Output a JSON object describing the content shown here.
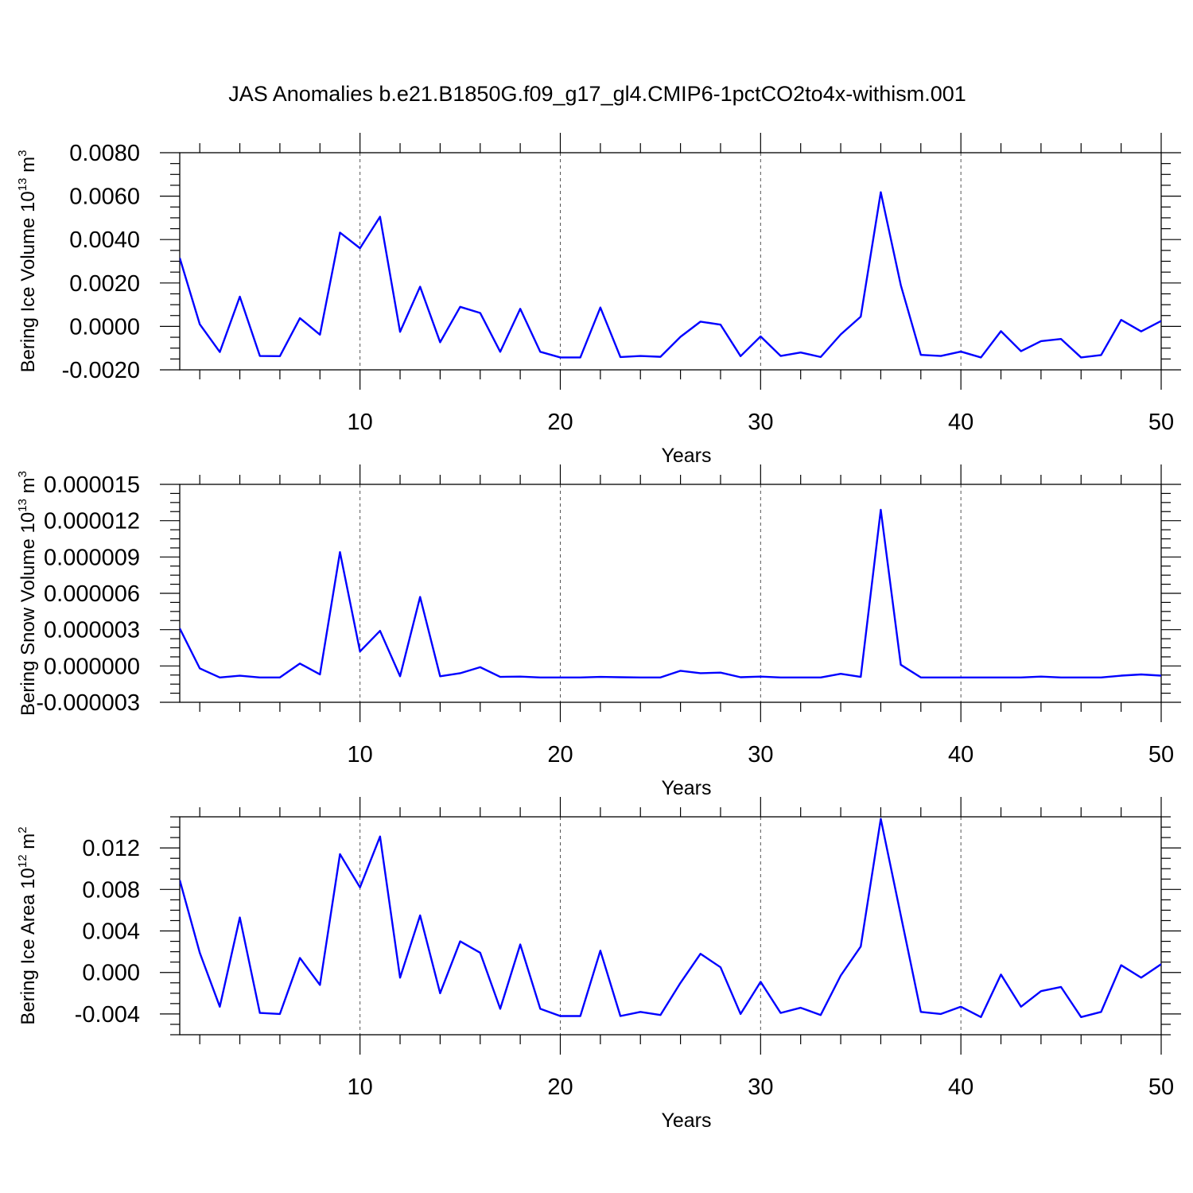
{
  "title": "JAS Anomalies b.e21.B1850G.f09_g17_gl4.CMIP6-1pctCO2to4x-withism.001",
  "colors": {
    "series": "#0000ff",
    "axes": "#000000",
    "grid": "#555555"
  },
  "chart_data": [
    {
      "type": "line",
      "xlabel": "Years",
      "ylabel": {
        "text": "Bering Ice Volume 10",
        "sup": "13",
        "unit": " m",
        "unit_sup": "3"
      },
      "grid": "dashed vertical at major x ticks",
      "xlim": [
        1,
        50
      ],
      "ylim": [
        -0.002,
        0.008
      ],
      "x_ticks": [
        10,
        20,
        30,
        40,
        50
      ],
      "x_tick_labels": [
        "10",
        "20",
        "30",
        "40",
        "50"
      ],
      "y_ticks": [
        -0.002,
        0.0,
        0.002,
        0.004,
        0.006,
        0.008
      ],
      "y_tick_labels": [
        "-0.0020",
        "0.0000",
        "0.0020",
        "0.0040",
        "0.0060",
        "0.0080"
      ],
      "y_minor_step": 0.0005,
      "x": [
        1,
        2,
        3,
        4,
        5,
        6,
        7,
        8,
        9,
        10,
        11,
        12,
        13,
        14,
        15,
        16,
        17,
        18,
        19,
        20,
        21,
        22,
        23,
        24,
        25,
        26,
        27,
        28,
        29,
        30,
        31,
        32,
        33,
        34,
        35,
        36,
        37,
        38,
        39,
        40,
        41,
        42,
        43,
        44,
        45,
        46,
        47,
        48,
        49,
        50
      ],
      "series": [
        {
          "values": [
            0.00315,
            0.0001,
            -0.00118,
            0.00137,
            -0.00136,
            -0.00137,
            0.00038,
            -0.00038,
            0.00432,
            0.0036,
            0.00505,
            -0.00025,
            0.00183,
            -0.00073,
            0.0009,
            0.00062,
            -0.00117,
            0.00081,
            -0.00117,
            -0.00143,
            -0.00143,
            0.00087,
            -0.00141,
            -0.00136,
            -0.0014,
            -0.00048,
            0.00022,
            8e-05,
            -0.00137,
            -0.00046,
            -0.00136,
            -0.0012,
            -0.00141,
            -0.00037,
            0.00045,
            0.00618,
            0.0019,
            -0.00131,
            -0.00136,
            -0.00116,
            -0.00143,
            -0.00022,
            -0.00114,
            -0.00068,
            -0.00058,
            -0.00143,
            -0.00132,
            0.0003,
            -0.00023,
            0.00025
          ]
        }
      ]
    },
    {
      "type": "line",
      "xlabel": "Years",
      "ylabel": {
        "text": "Bering Snow Volume 10",
        "sup": "13",
        "unit": " m",
        "unit_sup": "3"
      },
      "grid": "dashed vertical at major x ticks",
      "xlim": [
        1,
        50
      ],
      "ylim": [
        -3e-06,
        1.5e-05
      ],
      "x_ticks": [
        10,
        20,
        30,
        40,
        50
      ],
      "x_tick_labels": [
        "10",
        "20",
        "30",
        "40",
        "50"
      ],
      "y_ticks": [
        -3e-06,
        0.0,
        3e-06,
        6e-06,
        9e-06,
        1.2e-05,
        1.5e-05
      ],
      "y_tick_labels": [
        "-0.000003",
        "0.000000",
        "0.000003",
        "0.000006",
        "0.000009",
        "0.000012",
        "0.000015"
      ],
      "y_minor_step": 7.5e-07,
      "x": [
        1,
        2,
        3,
        4,
        5,
        6,
        7,
        8,
        9,
        10,
        11,
        12,
        13,
        14,
        15,
        16,
        17,
        18,
        19,
        20,
        21,
        22,
        23,
        24,
        25,
        26,
        27,
        28,
        29,
        30,
        31,
        32,
        33,
        34,
        35,
        36,
        37,
        38,
        39,
        40,
        41,
        42,
        43,
        44,
        45,
        46,
        47,
        48,
        49,
        50
      ],
      "series": [
        {
          "values": [
            3.1e-06,
            -2e-07,
            -9.5e-07,
            -8e-07,
            -9.5e-07,
            -9.5e-07,
            2e-07,
            -7e-07,
            9.4e-06,
            1.2e-06,
            2.9e-06,
            -8.5e-07,
            5.7e-06,
            -8.5e-07,
            -6e-07,
            -1e-07,
            -9e-07,
            -8.8e-07,
            -9.5e-07,
            -9.5e-07,
            -9.5e-07,
            -9e-07,
            -9.3e-07,
            -9.5e-07,
            -9.5e-07,
            -4e-07,
            -6e-07,
            -5.5e-07,
            -9.3e-07,
            -8.8e-07,
            -9.5e-07,
            -9.5e-07,
            -9.5e-07,
            -6.5e-07,
            -9e-07,
            1.29e-05,
            1e-07,
            -9.5e-07,
            -9.5e-07,
            -9.5e-07,
            -9.5e-07,
            -9.5e-07,
            -9.5e-07,
            -8.8e-07,
            -9.5e-07,
            -9.5e-07,
            -9.5e-07,
            -8e-07,
            -7e-07,
            -8e-07
          ]
        }
      ]
    },
    {
      "type": "line",
      "xlabel": "Years",
      "ylabel": {
        "text": "Bering Ice Area 10",
        "sup": "12",
        "unit": " m",
        "unit_sup": "2"
      },
      "grid": "dashed vertical at major x ticks",
      "xlim": [
        1,
        50
      ],
      "ylim": [
        -0.006,
        0.015
      ],
      "x_ticks": [
        10,
        20,
        30,
        40,
        50
      ],
      "x_tick_labels": [
        "10",
        "20",
        "30",
        "40",
        "50"
      ],
      "y_ticks": [
        -0.004,
        0.0,
        0.004,
        0.008,
        0.012
      ],
      "y_tick_labels": [
        "-0.004",
        "0.000",
        "0.004",
        "0.008",
        "0.012"
      ],
      "y_minor_step": 0.001,
      "x": [
        1,
        2,
        3,
        4,
        5,
        6,
        7,
        8,
        9,
        10,
        11,
        12,
        13,
        14,
        15,
        16,
        17,
        18,
        19,
        20,
        21,
        22,
        23,
        24,
        25,
        26,
        27,
        28,
        29,
        30,
        31,
        32,
        33,
        34,
        35,
        36,
        37,
        38,
        39,
        40,
        41,
        42,
        43,
        44,
        45,
        46,
        47,
        48,
        49,
        50
      ],
      "series": [
        {
          "values": [
            0.0089,
            0.0019,
            -0.0033,
            0.0053,
            -0.0039,
            -0.004,
            0.0014,
            -0.0012,
            0.0114,
            0.0082,
            0.0131,
            -0.0005,
            0.0055,
            -0.002,
            0.003,
            0.0019,
            -0.0035,
            0.0027,
            -0.0035,
            -0.0042,
            -0.0042,
            0.0021,
            -0.0042,
            -0.0038,
            -0.0041,
            -0.001,
            0.0018,
            0.0005,
            -0.004,
            -0.0009,
            -0.0039,
            -0.0034,
            -0.0041,
            -0.0003,
            0.0025,
            0.0148,
            0.0055,
            -0.0038,
            -0.004,
            -0.0033,
            -0.0043,
            -0.0002,
            -0.0033,
            -0.0018,
            -0.0014,
            -0.0043,
            -0.0038,
            0.0007,
            -0.0005,
            0.0008
          ]
        }
      ]
    }
  ]
}
